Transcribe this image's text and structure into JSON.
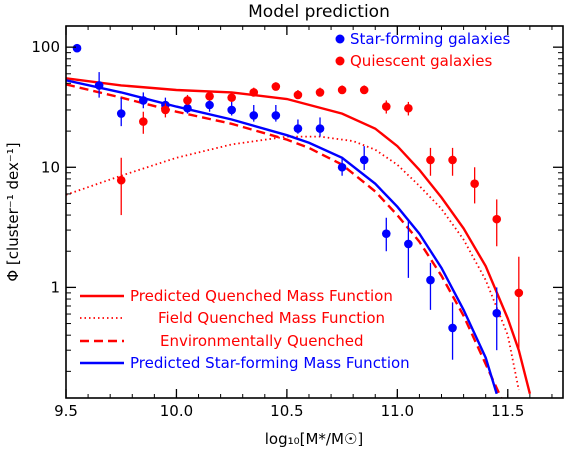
{
  "chart_data": {
    "type": "scatter",
    "title": "Model prediction",
    "xlabel": "log₁₀[M*/M☉]",
    "ylabel": "Φ [cluster⁻¹ dex⁻¹]",
    "xlim": [
      9.5,
      11.75
    ],
    "ylim": [
      0.12,
      150
    ],
    "y_scale": "log",
    "x_ticks": [
      "9.5",
      "10.0",
      "10.5",
      "11.0",
      "11.5"
    ],
    "x_tick_values": [
      9.5,
      10.0,
      10.5,
      11.0,
      11.5
    ],
    "y_ticks": [
      "1",
      "10",
      "100"
    ],
    "y_tick_values": [
      1,
      10,
      100
    ],
    "points": [
      {
        "name": "Star-forming galaxies",
        "color": "#0000ff",
        "marker": "filled-circle",
        "x": [
          9.55,
          9.65,
          9.75,
          9.85,
          9.95,
          10.05,
          10.15,
          10.25,
          10.35,
          10.45,
          10.55,
          10.65,
          10.75,
          10.85,
          10.95,
          11.05,
          11.15,
          11.25,
          11.45
        ],
        "y": [
          98,
          48,
          28,
          36,
          33,
          31,
          33,
          30,
          27,
          27,
          21,
          21,
          10,
          11.5,
          2.8,
          2.3,
          1.15,
          0.46,
          0.61
        ],
        "ylo": [
          98,
          38,
          22,
          31,
          29,
          28,
          29,
          27,
          24,
          24,
          19,
          18,
          8.5,
          9.5,
          2.0,
          1.2,
          0.65,
          0.25,
          0.3
        ],
        "yhi": [
          98,
          62,
          38,
          42,
          38,
          35,
          38,
          35,
          33,
          33,
          25,
          26,
          12,
          15,
          3.8,
          3.6,
          1.6,
          0.75,
          1.0
        ]
      },
      {
        "name": "Quiescent galaxies",
        "color": "#ff0000",
        "marker": "filled-circle",
        "x": [
          9.75,
          9.85,
          9.95,
          10.05,
          10.15,
          10.25,
          10.35,
          10.45,
          10.55,
          10.65,
          10.75,
          10.85,
          10.95,
          11.05,
          11.15,
          11.25,
          11.35,
          11.45,
          11.55
        ],
        "y": [
          7.8,
          24,
          30,
          36,
          39,
          38,
          42,
          47,
          40,
          42,
          44,
          44,
          32,
          31,
          11.5,
          11.5,
          7.3,
          3.7,
          0.9
        ],
        "ylo": [
          4.0,
          19,
          26,
          33,
          36,
          35,
          39,
          44,
          37,
          39,
          41,
          41,
          28,
          27,
          8.5,
          8.5,
          5.0,
          2.2,
          0.3
        ],
        "yhi": [
          12,
          29,
          34,
          40,
          43,
          42,
          46,
          51,
          44,
          46,
          48,
          48,
          36,
          35,
          14.5,
          14.5,
          10,
          5.4,
          1.8
        ]
      }
    ],
    "curves": [
      {
        "name": "Predicted Quenched Mass Function",
        "color": "#ff0000",
        "dash": "solid",
        "x": [
          9.5,
          9.75,
          10.0,
          10.25,
          10.5,
          10.75,
          10.9,
          11.0,
          11.1,
          11.2,
          11.3,
          11.4,
          11.5,
          11.55,
          11.6
        ],
        "y": [
          55,
          48,
          44,
          42,
          37,
          28,
          21,
          15,
          9.5,
          5.6,
          3.1,
          1.5,
          0.55,
          0.3,
          0.13
        ]
      },
      {
        "name": "Field Quenched Mass Function",
        "color": "#ff0000",
        "dash": "dotted",
        "x": [
          9.5,
          9.75,
          10.0,
          10.25,
          10.5,
          10.65,
          10.8,
          10.9,
          11.0,
          11.1,
          11.2,
          11.3,
          11.4,
          11.5,
          11.55
        ],
        "y": [
          5.9,
          8.5,
          12,
          15.5,
          18,
          18,
          16.5,
          14,
          10.5,
          7,
          4.5,
          2.5,
          1.15,
          0.4,
          0.14
        ]
      },
      {
        "name": "Environmentally Quenched",
        "color": "#ff0000",
        "dash": "dashed",
        "x": [
          9.5,
          9.75,
          10.0,
          10.25,
          10.5,
          10.6,
          10.75,
          10.9,
          11.0,
          11.1,
          11.2,
          11.3,
          11.4,
          11.47
        ],
        "y": [
          49,
          38,
          29,
          23,
          17,
          14.5,
          10.5,
          6.3,
          4.0,
          2.4,
          1.25,
          0.58,
          0.23,
          0.12
        ]
      },
      {
        "name": "Predicted Star-forming Mass Function",
        "color": "#0000ff",
        "dash": "solid",
        "x": [
          9.5,
          9.75,
          10.0,
          10.25,
          10.5,
          10.6,
          10.75,
          10.9,
          11.0,
          11.1,
          11.2,
          11.3,
          11.4,
          11.45
        ],
        "y": [
          53,
          42,
          32,
          25,
          18.5,
          16,
          12,
          7.3,
          4.7,
          2.8,
          1.45,
          0.65,
          0.26,
          0.13
        ]
      }
    ],
    "legend_top": {
      "position": "top-right",
      "items": [
        {
          "label": "Star-forming galaxies",
          "color": "#0000ff"
        },
        {
          "label": "Quiescent galaxies",
          "color": "#ff0000"
        }
      ]
    },
    "legend_bottom": {
      "position": "bottom-left",
      "items": [
        {
          "label": "Predicted Quenched Mass Function",
          "color": "#ff0000",
          "dash": "solid"
        },
        {
          "label": "Field Quenched Mass Function",
          "color": "#ff0000",
          "dash": "dotted"
        },
        {
          "label": "Environmentally Quenched",
          "color": "#ff0000",
          "dash": "dashed"
        },
        {
          "label": "Predicted Star-forming Mass Function",
          "color": "#0000ff",
          "dash": "solid"
        }
      ]
    }
  }
}
